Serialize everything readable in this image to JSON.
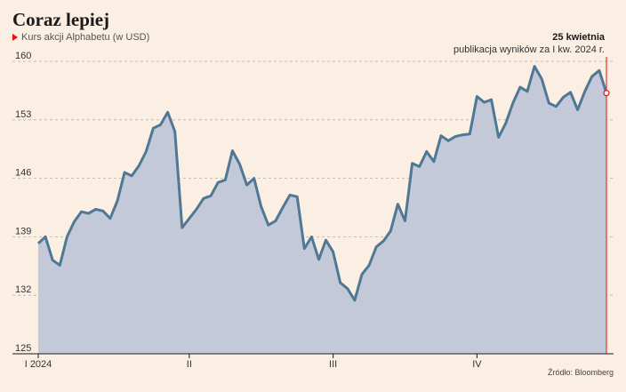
{
  "header": {
    "title": "Coraz lepiej",
    "subtitle": "Kurs akcji Alphabetu (w USD)"
  },
  "annotation": {
    "line1": "25 kwietnia",
    "line2": "publikacja wyników za I kw. 2024 r."
  },
  "source": "Źródło: Bloomberg",
  "colors": {
    "background": "#fbeee2",
    "line": "#4f7894",
    "area": "#c3c9d8",
    "marker": "#e3120b"
  },
  "chart_data": {
    "type": "area",
    "title": "Coraz lepiej",
    "subtitle": "Kurs akcji Alphabetu (w USD)",
    "xlabel": "",
    "ylabel": "",
    "ylim": [
      125,
      160
    ],
    "yticks": [
      "125",
      "132",
      "139",
      "146",
      "153",
      "160"
    ],
    "xticks": [
      {
        "label": "I 2024",
        "index": 0
      },
      {
        "label": "II",
        "index": 21
      },
      {
        "label": "III",
        "index": 41
      },
      {
        "label": "IV",
        "index": 61
      }
    ],
    "grid": true,
    "series": [
      {
        "values": [
          138.2,
          139.0,
          136.2,
          135.6,
          139.0,
          140.8,
          142.0,
          141.8,
          142.3,
          142.1,
          141.2,
          143.3,
          146.7,
          146.3,
          147.5,
          149.2,
          152.0,
          152.4,
          153.9,
          151.6,
          140.1,
          141.2,
          142.3,
          143.6,
          143.9,
          145.5,
          145.8,
          149.3,
          147.7,
          145.2,
          146.0,
          142.6,
          140.4,
          140.9,
          142.5,
          144.0,
          143.8,
          137.6,
          139.0,
          136.3,
          138.6,
          137.2,
          133.5,
          132.8,
          131.4,
          134.5,
          135.6,
          137.8,
          138.5,
          139.7,
          142.9,
          140.9,
          147.8,
          147.4,
          149.2,
          148.0,
          151.1,
          150.5,
          151.0,
          151.2,
          151.3,
          155.8,
          155.1,
          155.4,
          150.9,
          152.6,
          155.0,
          156.9,
          156.4,
          159.4,
          157.9,
          155.0,
          154.6,
          155.7,
          156.3,
          154.2,
          156.4,
          158.2,
          158.9,
          156.2
        ]
      }
    ],
    "annotation": {
      "label": "25 kwietnia",
      "text": "publikacja wyników za I kw. 2024 r.",
      "index": 79
    }
  }
}
